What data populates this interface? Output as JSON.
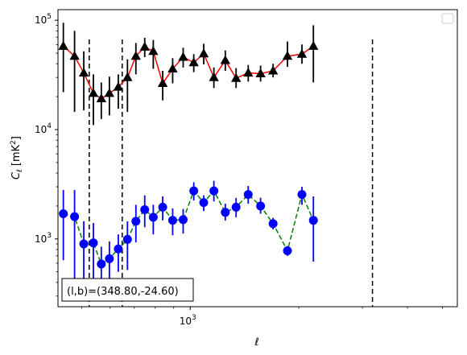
{
  "chart_data": {
    "type": "line",
    "xlabel": "ℓ",
    "ylabel": "C_ℓ [mK²]",
    "x_scale": "log",
    "y_scale": "log",
    "xlim": [
      430,
      5500
    ],
    "ylim": [
      240,
      125000
    ],
    "x_tick_labels": [
      {
        "value": 1000,
        "base": "10",
        "exp": "3"
      }
    ],
    "y_tick_labels": [
      {
        "value": 1000,
        "base": "10",
        "exp": "3"
      },
      {
        "value": 10000,
        "base": "10",
        "exp": "4"
      },
      {
        "value": 100000,
        "base": "10",
        "exp": "5"
      }
    ],
    "annotation": "(l,b)=(348.80,-24.60)",
    "vertical_dashed_lines_x": [
      525,
      648,
      3200
    ],
    "legend": {
      "placement": "top-right",
      "entries": []
    },
    "series": [
      {
        "style": "solid",
        "line_color": "#ff0000",
        "marker": "triangle",
        "marker_color": "#000000",
        "errorbar_color": "#000000",
        "points": [
          {
            "x": 445,
            "y": 58000,
            "lo": 22000,
            "hi": 95000
          },
          {
            "x": 478,
            "y": 47000,
            "lo": 14500,
            "hi": 80000
          },
          {
            "x": 507,
            "y": 33000,
            "lo": 15000,
            "hi": 52000
          },
          {
            "x": 539,
            "y": 21500,
            "lo": 11000,
            "hi": 32000
          },
          {
            "x": 567,
            "y": 19200,
            "lo": 12500,
            "hi": 27000
          },
          {
            "x": 597,
            "y": 21500,
            "lo": 13500,
            "hi": 30500
          },
          {
            "x": 632,
            "y": 24500,
            "lo": 15500,
            "hi": 32000
          },
          {
            "x": 670,
            "y": 30000,
            "lo": 14500,
            "hi": 44000
          },
          {
            "x": 707,
            "y": 47000,
            "lo": 32000,
            "hi": 62000
          },
          {
            "x": 748,
            "y": 57000,
            "lo": 46000,
            "hi": 69000
          },
          {
            "x": 790,
            "y": 52000,
            "lo": 36000,
            "hi": 66000
          },
          {
            "x": 839,
            "y": 26500,
            "lo": 18500,
            "hi": 34500
          },
          {
            "x": 894,
            "y": 36000,
            "lo": 26500,
            "hi": 45000
          },
          {
            "x": 956,
            "y": 46000,
            "lo": 37000,
            "hi": 56000
          },
          {
            "x": 1023,
            "y": 41000,
            "lo": 33500,
            "hi": 49000
          },
          {
            "x": 1090,
            "y": 49500,
            "lo": 39500,
            "hi": 61000
          },
          {
            "x": 1163,
            "y": 30000,
            "lo": 24000,
            "hi": 37000
          },
          {
            "x": 1251,
            "y": 43000,
            "lo": 34500,
            "hi": 53000
          },
          {
            "x": 1340,
            "y": 29500,
            "lo": 24000,
            "hi": 36500
          },
          {
            "x": 1448,
            "y": 33000,
            "lo": 27500,
            "hi": 39000
          },
          {
            "x": 1567,
            "y": 32500,
            "lo": 27500,
            "hi": 38500
          },
          {
            "x": 1697,
            "y": 34500,
            "lo": 30000,
            "hi": 40000
          },
          {
            "x": 1860,
            "y": 47000,
            "lo": 37500,
            "hi": 64000
          },
          {
            "x": 2040,
            "y": 49000,
            "lo": 40000,
            "hi": 60000
          },
          {
            "x": 2195,
            "y": 58000,
            "lo": 27000,
            "hi": 90000
          }
        ]
      },
      {
        "style": "dashed",
        "line_color": "#008000",
        "marker": "circle",
        "marker_color": "#0000ff",
        "errorbar_color": "#0000ff",
        "points": [
          {
            "x": 445,
            "y": 1700,
            "lo": 640,
            "hi": 2800
          },
          {
            "x": 478,
            "y": 1600,
            "lo": 380,
            "hi": 2800
          },
          {
            "x": 507,
            "y": 900,
            "lo": 340,
            "hi": 1450
          },
          {
            "x": 539,
            "y": 920,
            "lo": 400,
            "hi": 1400
          },
          {
            "x": 567,
            "y": 590,
            "lo": 360,
            "hi": 850
          },
          {
            "x": 597,
            "y": 660,
            "lo": 380,
            "hi": 950
          },
          {
            "x": 632,
            "y": 810,
            "lo": 500,
            "hi": 1100
          },
          {
            "x": 670,
            "y": 990,
            "lo": 520,
            "hi": 1450
          },
          {
            "x": 707,
            "y": 1450,
            "lo": 930,
            "hi": 2050
          },
          {
            "x": 748,
            "y": 1850,
            "lo": 1280,
            "hi": 2500
          },
          {
            "x": 790,
            "y": 1580,
            "lo": 1100,
            "hi": 2050
          },
          {
            "x": 839,
            "y": 1950,
            "lo": 1480,
            "hi": 2450
          },
          {
            "x": 894,
            "y": 1480,
            "lo": 1080,
            "hi": 1900
          },
          {
            "x": 956,
            "y": 1500,
            "lo": 1120,
            "hi": 1880
          },
          {
            "x": 1023,
            "y": 2750,
            "lo": 2250,
            "hi": 3300
          },
          {
            "x": 1090,
            "y": 2150,
            "lo": 1800,
            "hi": 2500
          },
          {
            "x": 1163,
            "y": 2750,
            "lo": 2200,
            "hi": 3400
          },
          {
            "x": 1251,
            "y": 1750,
            "lo": 1470,
            "hi": 2100
          },
          {
            "x": 1340,
            "y": 1950,
            "lo": 1580,
            "hi": 2370
          },
          {
            "x": 1448,
            "y": 2550,
            "lo": 2100,
            "hi": 3050
          },
          {
            "x": 1567,
            "y": 2000,
            "lo": 1700,
            "hi": 2380
          },
          {
            "x": 1697,
            "y": 1380,
            "lo": 1220,
            "hi": 1560
          },
          {
            "x": 1860,
            "y": 780,
            "lo": 700,
            "hi": 860
          },
          {
            "x": 2040,
            "y": 2550,
            "lo": 2050,
            "hi": 3000
          },
          {
            "x": 2195,
            "y": 1480,
            "lo": 620,
            "hi": 2450
          }
        ]
      }
    ]
  }
}
